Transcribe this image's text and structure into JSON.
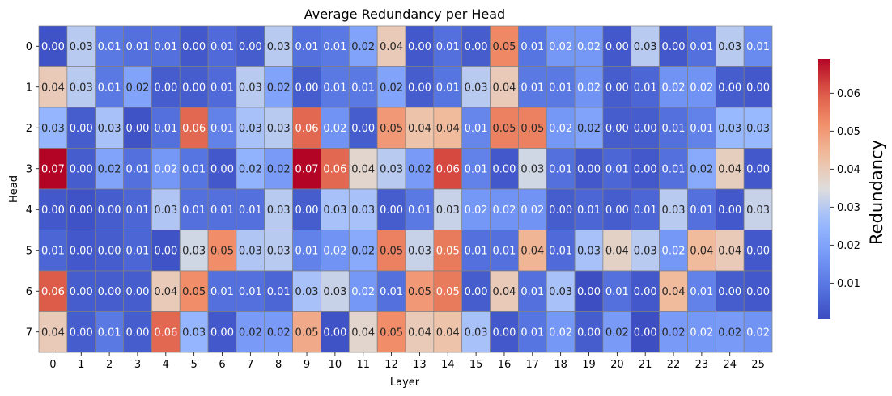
{
  "chart_data": {
    "type": "heatmap",
    "title": "Average Redundancy per Head",
    "xlabel": "Layer",
    "ylabel": "Head",
    "x_categories": [
      "0",
      "1",
      "2",
      "3",
      "4",
      "5",
      "6",
      "7",
      "8",
      "9",
      "10",
      "11",
      "12",
      "13",
      "14",
      "15",
      "16",
      "17",
      "18",
      "19",
      "20",
      "21",
      "22",
      "23",
      "24",
      "25"
    ],
    "y_categories": [
      "0",
      "1",
      "2",
      "3",
      "4",
      "5",
      "6",
      "7"
    ],
    "values": [
      [
        0.002,
        0.03,
        0.01,
        0.008,
        0.008,
        0.003,
        0.007,
        0.004,
        0.03,
        0.008,
        0.01,
        0.02,
        0.04,
        0.003,
        0.008,
        0.004,
        0.053,
        0.009,
        0.017,
        0.017,
        0.003,
        0.03,
        0.003,
        0.008,
        0.03,
        0.014
      ],
      [
        0.04,
        0.03,
        0.01,
        0.02,
        0.004,
        0.004,
        0.007,
        0.03,
        0.02,
        0.004,
        0.01,
        0.01,
        0.02,
        0.004,
        0.009,
        0.03,
        0.04,
        0.01,
        0.01,
        0.016,
        0.004,
        0.006,
        0.016,
        0.016,
        0.004,
        0.003
      ],
      [
        0.025,
        0.004,
        0.028,
        0.002,
        0.008,
        0.058,
        0.012,
        0.028,
        0.03,
        0.058,
        0.016,
        0.004,
        0.05,
        0.042,
        0.044,
        0.013,
        0.054,
        0.054,
        0.017,
        0.02,
        0.004,
        0.004,
        0.008,
        0.012,
        0.026,
        0.026
      ],
      [
        0.069,
        0.004,
        0.02,
        0.008,
        0.017,
        0.009,
        0.003,
        0.024,
        0.018,
        0.069,
        0.058,
        0.037,
        0.03,
        0.018,
        0.062,
        0.012,
        0.003,
        0.033,
        0.008,
        0.003,
        0.006,
        0.003,
        0.008,
        0.022,
        0.039,
        0.003
      ],
      [
        0.003,
        0.002,
        0.004,
        0.006,
        0.029,
        0.008,
        0.008,
        0.008,
        0.03,
        0.004,
        0.028,
        0.028,
        0.004,
        0.01,
        0.032,
        0.017,
        0.016,
        0.016,
        0.004,
        0.006,
        0.004,
        0.006,
        0.03,
        0.008,
        0.003,
        0.032
      ],
      [
        0.006,
        0.003,
        0.004,
        0.006,
        0.002,
        0.033,
        0.052,
        0.029,
        0.03,
        0.012,
        0.016,
        0.022,
        0.054,
        0.032,
        0.055,
        0.008,
        0.008,
        0.045,
        0.007,
        0.028,
        0.038,
        0.03,
        0.017,
        0.044,
        0.04,
        0.003
      ],
      [
        0.06,
        0.004,
        0.004,
        0.004,
        0.04,
        0.052,
        0.008,
        0.008,
        0.006,
        0.028,
        0.032,
        0.017,
        0.008,
        0.05,
        0.055,
        0.004,
        0.04,
        0.008,
        0.028,
        0.001,
        0.008,
        0.003,
        0.044,
        0.012,
        0.004,
        0.003
      ],
      [
        0.04,
        0.004,
        0.01,
        0.004,
        0.058,
        0.025,
        0.003,
        0.018,
        0.018,
        0.047,
        0.002,
        0.037,
        0.052,
        0.04,
        0.042,
        0.028,
        0.003,
        0.009,
        0.017,
        0.004,
        0.018,
        0.001,
        0.018,
        0.017,
        0.018,
        0.016
      ]
    ],
    "value_labels": [
      [
        "0.00",
        "0.03",
        "0.01",
        "0.01",
        "0.01",
        "0.00",
        "0.01",
        "0.00",
        "0.03",
        "0.01",
        "0.01",
        "0.02",
        "0.04",
        "0.00",
        "0.01",
        "0.00",
        "0.05",
        "0.01",
        "0.02",
        "0.02",
        "0.00",
        "0.03",
        "0.00",
        "0.01",
        "0.03",
        "0.01"
      ],
      [
        "0.04",
        "0.03",
        "0.01",
        "0.02",
        "0.00",
        "0.00",
        "0.01",
        "0.03",
        "0.02",
        "0.00",
        "0.01",
        "0.01",
        "0.02",
        "0.00",
        "0.01",
        "0.03",
        "0.04",
        "0.01",
        "0.01",
        "0.02",
        "0.00",
        "0.01",
        "0.02",
        "0.02",
        "0.00",
        "0.00"
      ],
      [
        "0.03",
        "0.00",
        "0.03",
        "0.00",
        "0.01",
        "0.06",
        "0.01",
        "0.03",
        "0.03",
        "0.06",
        "0.02",
        "0.00",
        "0.05",
        "0.04",
        "0.04",
        "0.01",
        "0.05",
        "0.05",
        "0.02",
        "0.02",
        "0.00",
        "0.00",
        "0.01",
        "0.01",
        "0.03",
        "0.03"
      ],
      [
        "0.07",
        "0.00",
        "0.02",
        "0.01",
        "0.02",
        "0.01",
        "0.00",
        "0.02",
        "0.02",
        "0.07",
        "0.06",
        "0.04",
        "0.03",
        "0.02",
        "0.06",
        "0.01",
        "0.00",
        "0.03",
        "0.01",
        "0.00",
        "0.01",
        "0.00",
        "0.01",
        "0.02",
        "0.04",
        "0.00"
      ],
      [
        "0.00",
        "0.00",
        "0.00",
        "0.01",
        "0.03",
        "0.01",
        "0.01",
        "0.01",
        "0.03",
        "0.00",
        "0.03",
        "0.03",
        "0.00",
        "0.01",
        "0.03",
        "0.02",
        "0.02",
        "0.02",
        "0.00",
        "0.01",
        "0.00",
        "0.01",
        "0.03",
        "0.01",
        "0.00",
        "0.03"
      ],
      [
        "0.01",
        "0.00",
        "0.00",
        "0.01",
        "0.00",
        "0.03",
        "0.05",
        "0.03",
        "0.03",
        "0.01",
        "0.02",
        "0.02",
        "0.05",
        "0.03",
        "0.05",
        "0.01",
        "0.01",
        "0.04",
        "0.01",
        "0.03",
        "0.04",
        "0.03",
        "0.02",
        "0.04",
        "0.04",
        "0.00"
      ],
      [
        "0.06",
        "0.00",
        "0.00",
        "0.00",
        "0.04",
        "0.05",
        "0.01",
        "0.01",
        "0.01",
        "0.03",
        "0.03",
        "0.02",
        "0.01",
        "0.05",
        "0.05",
        "0.00",
        "0.04",
        "0.01",
        "0.03",
        "0.00",
        "0.01",
        "0.00",
        "0.04",
        "0.01",
        "0.00",
        "0.00"
      ],
      [
        "0.04",
        "0.00",
        "0.01",
        "0.00",
        "0.06",
        "0.03",
        "0.00",
        "0.02",
        "0.02",
        "0.05",
        "0.00",
        "0.04",
        "0.05",
        "0.04",
        "0.04",
        "0.03",
        "0.00",
        "0.01",
        "0.02",
        "0.00",
        "0.02",
        "0.00",
        "0.02",
        "0.02",
        "0.02",
        "0.02"
      ]
    ],
    "colormap": "coolwarm",
    "colorbar": {
      "label": "Redundancy",
      "vmin": 0.0005,
      "vmax": 0.069,
      "ticks": [
        0.01,
        0.02,
        0.03,
        0.04,
        0.05,
        0.06
      ],
      "tick_labels": [
        "0.01",
        "0.02",
        "0.03",
        "0.04",
        "0.05",
        "0.06"
      ]
    },
    "cell_border_color": "#808080",
    "grid": false
  }
}
